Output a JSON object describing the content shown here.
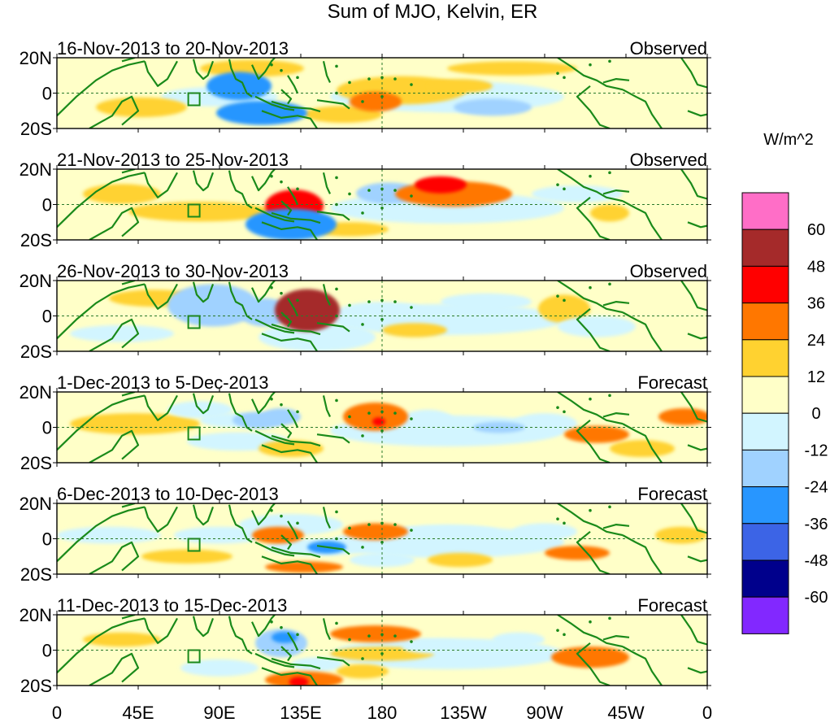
{
  "title": "Sum of MJO, Kelvin, ER",
  "panels": [
    {
      "date_range": "16-Nov-2013 to 20-Nov-2013",
      "status": "Observed"
    },
    {
      "date_range": "21-Nov-2013 to 25-Nov-2013",
      "status": "Observed"
    },
    {
      "date_range": "26-Nov-2013 to 30-Nov-2013",
      "status": "Observed"
    },
    {
      "date_range": "1-Dec-2013 to 5-Dec-2013",
      "status": "Forecast"
    },
    {
      "date_range": "6-Dec-2013 to 10-Dec-2013",
      "status": "Forecast"
    },
    {
      "date_range": "11-Dec-2013 to 15-Dec-2013",
      "status": "Forecast"
    }
  ],
  "lat_labels": [
    "20N",
    "0",
    "20S"
  ],
  "lon_labels": [
    "0",
    "45E",
    "90E",
    "135E",
    "180",
    "135W",
    "90W",
    "45W",
    "0"
  ],
  "colorbar": {
    "unit_label": "W/m^2",
    "tick_labels": [
      "60",
      "48",
      "36",
      "24",
      "12",
      "0",
      "-12",
      "-24",
      "-36",
      "-48",
      "-60"
    ],
    "colors": [
      "#ff6ec7",
      "#a52a2a",
      "#ff0000",
      "#ff7700",
      "#ffd230",
      "#ffffc8",
      "#d2f5ff",
      "#a0d2ff",
      "#2896ff",
      "#3c64e6",
      "#00008c",
      "#8228ff"
    ]
  },
  "coast_color": "#1a8a1a",
  "blobs": [
    [
      [
        2,
        0.62,
        0.62,
        0.07,
        0.14,
        -1
      ],
      [
        2,
        0.53,
        0.46,
        0.1,
        0.2,
        1
      ],
      [
        2,
        0.44,
        0.8,
        0.06,
        0.12,
        1
      ],
      [
        2,
        0.25,
        0.55,
        0.09,
        0.14,
        -1
      ],
      [
        3,
        0.315,
        0.78,
        0.07,
        0.17,
        -3
      ],
      [
        3,
        0.28,
        0.4,
        0.05,
        0.2,
        -3
      ],
      [
        2,
        0.49,
        0.62,
        0.04,
        0.14,
        2
      ],
      [
        2,
        0.67,
        0.7,
        0.06,
        0.12,
        -2
      ],
      [
        2,
        0.62,
        0.4,
        0.05,
        0.1,
        1
      ],
      [
        2,
        0.13,
        0.7,
        0.07,
        0.14,
        1
      ],
      [
        2,
        0.3,
        0.15,
        0.08,
        0.12,
        1
      ],
      [
        2,
        0.7,
        0.15,
        0.1,
        0.1,
        1
      ]
    ],
    [
      [
        3,
        0.365,
        0.52,
        0.045,
        0.23,
        3
      ],
      [
        3,
        0.36,
        0.78,
        0.07,
        0.22,
        -3
      ],
      [
        2,
        0.22,
        0.6,
        0.11,
        0.14,
        1
      ],
      [
        3,
        0.51,
        0.34,
        0.05,
        0.15,
        -2
      ],
      [
        2,
        0.61,
        0.35,
        0.09,
        0.18,
        2
      ],
      [
        2,
        0.59,
        0.22,
        0.04,
        0.12,
        3
      ],
      [
        2,
        0.67,
        0.55,
        0.06,
        0.14,
        -1
      ],
      [
        2,
        0.85,
        0.62,
        0.03,
        0.12,
        1
      ],
      [
        2,
        0.1,
        0.35,
        0.06,
        0.14,
        1
      ],
      [
        2,
        0.45,
        0.85,
        0.06,
        0.1,
        1
      ],
      [
        2,
        0.8,
        0.35,
        0.07,
        0.12,
        -1
      ]
    ],
    [
      [
        3,
        0.385,
        0.42,
        0.05,
        0.3,
        4
      ],
      [
        3,
        0.24,
        0.35,
        0.07,
        0.3,
        -2
      ],
      [
        2,
        0.5,
        0.45,
        0.07,
        0.15,
        -1
      ],
      [
        2,
        0.4,
        0.8,
        0.09,
        0.2,
        -1
      ],
      [
        3,
        0.32,
        0.45,
        0.04,
        0.2,
        -2
      ],
      [
        2,
        0.15,
        0.25,
        0.07,
        0.12,
        1
      ],
      [
        2,
        0.78,
        0.4,
        0.04,
        0.2,
        1
      ],
      [
        2,
        0.83,
        0.65,
        0.06,
        0.15,
        -1
      ],
      [
        2,
        0.55,
        0.7,
        0.05,
        0.1,
        1
      ],
      [
        2,
        0.66,
        0.3,
        0.07,
        0.12,
        -1
      ],
      [
        2,
        0.1,
        0.75,
        0.08,
        0.12,
        -1
      ]
    ],
    [
      [
        2,
        0.49,
        0.35,
        0.05,
        0.2,
        2
      ],
      [
        2,
        0.495,
        0.42,
        0.01,
        0.06,
        3
      ],
      [
        2,
        0.28,
        0.7,
        0.08,
        0.13,
        -1
      ],
      [
        2,
        0.31,
        0.4,
        0.04,
        0.12,
        -2
      ],
      [
        2,
        0.345,
        0.35,
        0.03,
        0.12,
        -2
      ],
      [
        2,
        0.12,
        0.45,
        0.1,
        0.15,
        1
      ],
      [
        2,
        0.27,
        0.4,
        0.05,
        0.1,
        -1
      ],
      [
        2,
        0.75,
        0.45,
        0.05,
        0.15,
        -1
      ],
      [
        2,
        0.68,
        0.5,
        0.04,
        0.08,
        -2
      ],
      [
        2,
        0.83,
        0.6,
        0.05,
        0.12,
        2
      ],
      [
        2,
        0.965,
        0.35,
        0.04,
        0.12,
        2
      ],
      [
        2,
        0.57,
        0.4,
        0.04,
        0.15,
        -1
      ],
      [
        2,
        0.36,
        0.8,
        0.05,
        0.12,
        1
      ],
      [
        2,
        0.22,
        0.25,
        0.05,
        0.12,
        -1
      ],
      [
        2,
        0.9,
        0.8,
        0.05,
        0.12,
        1
      ]
    ],
    [
      [
        2,
        0.4,
        0.62,
        0.08,
        0.12,
        -1
      ],
      [
        2,
        0.415,
        0.62,
        0.03,
        0.09,
        -3
      ],
      [
        2,
        0.36,
        0.3,
        0.08,
        0.15,
        -1
      ],
      [
        2,
        0.34,
        0.45,
        0.04,
        0.12,
        2
      ],
      [
        2,
        0.49,
        0.4,
        0.05,
        0.12,
        2
      ],
      [
        2,
        0.25,
        0.45,
        0.07,
        0.12,
        -1
      ],
      [
        2,
        0.08,
        0.45,
        0.08,
        0.12,
        -1
      ],
      [
        2,
        0.2,
        0.75,
        0.07,
        0.1,
        1
      ],
      [
        2,
        0.38,
        0.9,
        0.06,
        0.08,
        2
      ],
      [
        2,
        0.6,
        0.4,
        0.08,
        0.1,
        -1
      ],
      [
        2,
        0.8,
        0.7,
        0.05,
        0.1,
        2
      ],
      [
        2,
        0.62,
        0.8,
        0.05,
        0.1,
        1
      ],
      [
        2,
        0.75,
        0.4,
        0.05,
        0.12,
        -1
      ],
      [
        2,
        0.96,
        0.45,
        0.04,
        0.12,
        1
      ],
      [
        2,
        0.5,
        0.8,
        0.05,
        0.1,
        -1
      ]
    ],
    [
      [
        2,
        0.345,
        0.4,
        0.04,
        0.2,
        -2
      ],
      [
        2,
        0.35,
        0.32,
        0.02,
        0.08,
        -3
      ],
      [
        2,
        0.38,
        0.92,
        0.06,
        0.12,
        2
      ],
      [
        2,
        0.372,
        0.95,
        0.015,
        0.07,
        3
      ],
      [
        2,
        0.4,
        0.7,
        0.04,
        0.1,
        -1
      ],
      [
        2,
        0.55,
        0.55,
        0.06,
        0.1,
        -1
      ],
      [
        2,
        0.49,
        0.27,
        0.07,
        0.12,
        2
      ],
      [
        2,
        0.5,
        0.55,
        0.08,
        0.1,
        1
      ],
      [
        2,
        0.58,
        0.45,
        0.05,
        0.1,
        -1
      ],
      [
        2,
        0.25,
        0.75,
        0.06,
        0.12,
        -1
      ],
      [
        2,
        0.1,
        0.35,
        0.06,
        0.1,
        1
      ],
      [
        2,
        0.82,
        0.6,
        0.06,
        0.15,
        2
      ],
      [
        2,
        0.71,
        0.35,
        0.04,
        0.1,
        -1
      ],
      [
        2,
        0.47,
        0.8,
        0.04,
        0.1,
        1
      ]
    ]
  ]
}
